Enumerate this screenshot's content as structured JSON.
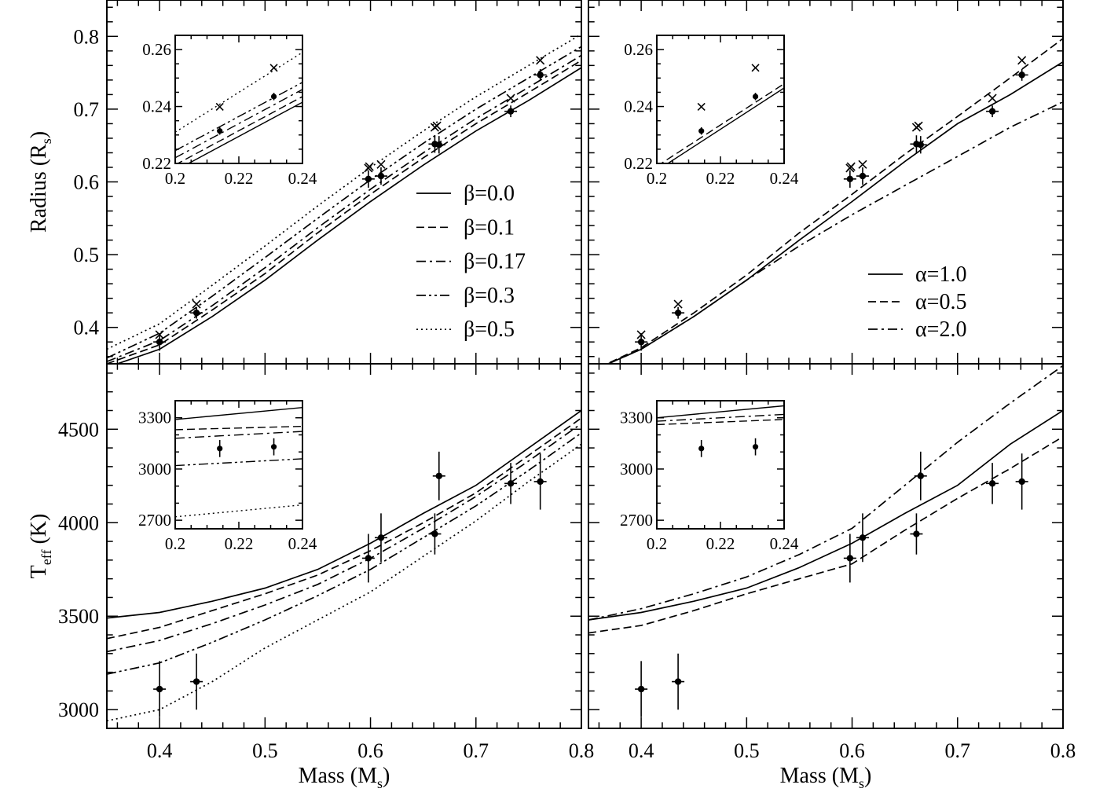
{
  "chart_data": [
    {
      "type": "line",
      "panel": "top-left",
      "ylabel": "Radius (R",
      "ylabel_sub": "s",
      "ylabel_tail": ")",
      "xlim": [
        0.35,
        0.8
      ],
      "ylim": [
        0.35,
        0.85
      ],
      "y_ticks": [
        "0.4",
        "0.5",
        "0.6",
        "0.7",
        "0.8"
      ],
      "legend_position": "lower-right",
      "series": [
        {
          "name": "β=0.0",
          "style": "solid",
          "x": [
            0.35,
            0.4,
            0.45,
            0.5,
            0.55,
            0.6,
            0.65,
            0.7,
            0.75,
            0.8
          ],
          "y": [
            0.345,
            0.37,
            0.415,
            0.465,
            0.52,
            0.573,
            0.623,
            0.67,
            0.712,
            0.757
          ]
        },
        {
          "name": "β=0.1",
          "style": "dashed",
          "x": [
            0.35,
            0.4,
            0.45,
            0.5,
            0.55,
            0.6,
            0.65,
            0.7,
            0.75,
            0.8
          ],
          "y": [
            0.35,
            0.376,
            0.424,
            0.474,
            0.53,
            0.583,
            0.633,
            0.68,
            0.723,
            0.767
          ]
        },
        {
          "name": "β=0.17",
          "style": "dashdot",
          "x": [
            0.35,
            0.4,
            0.45,
            0.5,
            0.55,
            0.6,
            0.65,
            0.7,
            0.75,
            0.8
          ],
          "y": [
            0.353,
            0.382,
            0.43,
            0.482,
            0.537,
            0.59,
            0.64,
            0.687,
            0.73,
            0.774
          ]
        },
        {
          "name": "β=0.3",
          "style": "dashdotdot",
          "x": [
            0.35,
            0.4,
            0.45,
            0.5,
            0.55,
            0.6,
            0.65,
            0.7,
            0.75,
            0.8
          ],
          "y": [
            0.358,
            0.392,
            0.443,
            0.496,
            0.55,
            0.603,
            0.653,
            0.7,
            0.743,
            0.786
          ]
        },
        {
          "name": "β=0.5",
          "style": "dotted",
          "x": [
            0.35,
            0.4,
            0.45,
            0.5,
            0.55,
            0.6,
            0.65,
            0.7,
            0.75,
            0.8
          ],
          "y": [
            0.37,
            0.405,
            0.458,
            0.512,
            0.567,
            0.62,
            0.67,
            0.717,
            0.76,
            0.803
          ]
        }
      ],
      "observed": {
        "x": [
          0.4,
          0.435,
          0.598,
          0.61,
          0.661,
          0.665,
          0.733,
          0.761
        ],
        "y": [
          0.38,
          0.42,
          0.604,
          0.608,
          0.652,
          0.651,
          0.697,
          0.747
        ],
        "yerr": [
          0.012,
          0.008,
          0.012,
          0.012,
          0.012,
          0.012,
          0.008,
          0.008
        ]
      },
      "crosses": {
        "x": [
          0.4,
          0.435,
          0.598,
          0.599,
          0.61,
          0.661,
          0.663,
          0.733,
          0.761
        ],
        "y": [
          0.39,
          0.432,
          0.619,
          0.621,
          0.624,
          0.675,
          0.677,
          0.715,
          0.767
        ]
      },
      "inset": {
        "xlim": [
          0.2,
          0.24
        ],
        "ylim": [
          0.22,
          0.265
        ],
        "x_ticks": [
          "0.2",
          "0.22",
          "0.24"
        ],
        "y_ticks": [
          "0.22",
          "0.24",
          "0.26"
        ],
        "series": [
          {
            "style": "solid",
            "x": [
              0.2,
              0.24
            ],
            "y": [
              0.2175,
              0.2415
            ]
          },
          {
            "style": "dashed",
            "x": [
              0.2,
              0.24
            ],
            "y": [
              0.2195,
              0.2435
            ]
          },
          {
            "style": "dashdot",
            "x": [
              0.2,
              0.24
            ],
            "y": [
              0.222,
              0.246
            ]
          },
          {
            "style": "dashdotdot",
            "x": [
              0.2,
              0.24
            ],
            "y": [
              0.2245,
              0.2485
            ]
          },
          {
            "style": "dotted",
            "x": [
              0.2,
              0.24
            ],
            "y": [
              0.231,
              0.259
            ]
          }
        ],
        "observed": {
          "x": [
            0.214,
            0.231
          ],
          "y": [
            0.2314,
            0.2435
          ],
          "yerr": [
            0.0013,
            0.0013
          ]
        },
        "crosses": {
          "x": [
            0.214,
            0.231
          ],
          "y": [
            0.2399,
            0.2536
          ]
        }
      }
    },
    {
      "type": "line",
      "panel": "top-right",
      "xlim": [
        0.35,
        0.8
      ],
      "ylim": [
        0.35,
        0.85
      ],
      "legend_position": "lower-right",
      "series": [
        {
          "name": "α=1.0",
          "style": "solid",
          "x": [
            0.35,
            0.4,
            0.45,
            0.5,
            0.55,
            0.6,
            0.65,
            0.7,
            0.75,
            0.8
          ],
          "y": [
            0.338,
            0.37,
            0.415,
            0.465,
            0.52,
            0.573,
            0.628,
            0.68,
            0.72,
            0.765
          ]
        },
        {
          "name": "α=0.5",
          "style": "dashed",
          "x": [
            0.35,
            0.4,
            0.45,
            0.5,
            0.55,
            0.6,
            0.65,
            0.7,
            0.75,
            0.8
          ],
          "y": [
            0.338,
            0.372,
            0.42,
            0.472,
            0.53,
            0.583,
            0.638,
            0.69,
            0.743,
            0.797
          ]
        },
        {
          "name": "α=2.0",
          "style": "dashdot",
          "x": [
            0.35,
            0.4,
            0.45,
            0.5,
            0.55,
            0.6,
            0.65,
            0.7,
            0.75,
            0.8
          ],
          "y": [
            0.338,
            0.37,
            0.415,
            0.465,
            0.512,
            0.555,
            0.595,
            0.635,
            0.675,
            0.71
          ]
        }
      ],
      "observed": {
        "x": [
          0.4,
          0.435,
          0.598,
          0.61,
          0.661,
          0.665,
          0.733,
          0.761
        ],
        "y": [
          0.38,
          0.42,
          0.604,
          0.608,
          0.652,
          0.651,
          0.697,
          0.747
        ],
        "yerr": [
          0.012,
          0.008,
          0.012,
          0.012,
          0.012,
          0.012,
          0.008,
          0.008
        ]
      },
      "crosses": {
        "x": [
          0.4,
          0.435,
          0.598,
          0.599,
          0.61,
          0.661,
          0.663,
          0.733,
          0.761
        ],
        "y": [
          0.39,
          0.432,
          0.619,
          0.621,
          0.624,
          0.675,
          0.677,
          0.715,
          0.767
        ]
      },
      "inset": {
        "xlim": [
          0.2,
          0.24
        ],
        "ylim": [
          0.22,
          0.265
        ],
        "x_ticks": [
          "0.2",
          "0.22",
          "0.24"
        ],
        "y_ticks": [
          "0.22",
          "0.24",
          "0.26"
        ],
        "series": [
          {
            "style": "solid",
            "x": [
              0.2,
              0.24
            ],
            "y": [
              0.2175,
              0.2465
            ]
          },
          {
            "style": "dashed",
            "x": [
              0.2,
              0.24
            ],
            "y": [
              0.219,
              0.248
            ]
          }
        ],
        "observed": {
          "x": [
            0.214,
            0.231
          ],
          "y": [
            0.2314,
            0.2435
          ],
          "yerr": [
            0.0013,
            0.0013
          ]
        },
        "crosses": {
          "x": [
            0.214,
            0.231
          ],
          "y": [
            0.2399,
            0.2536
          ]
        }
      }
    },
    {
      "type": "line",
      "panel": "bottom-left",
      "ylabel": "T",
      "ylabel_sub": "eff",
      "ylabel_tail": " (K)",
      "xlabel": "Mass (M",
      "xlabel_sub": "s",
      "xlabel_tail": ")",
      "xlim": [
        0.35,
        0.8
      ],
      "ylim": [
        2900,
        4850
      ],
      "x_ticks": [
        "0.4",
        "0.5",
        "0.6",
        "0.7",
        "0.8"
      ],
      "y_ticks": [
        "3000",
        "3500",
        "4000",
        "4500"
      ],
      "series": [
        {
          "style": "solid",
          "x": [
            0.35,
            0.4,
            0.45,
            0.5,
            0.55,
            0.6,
            0.65,
            0.7,
            0.75,
            0.8
          ],
          "y": [
            3490,
            3520,
            3580,
            3650,
            3750,
            3890,
            4050,
            4200,
            4400,
            4600
          ]
        },
        {
          "style": "dashed",
          "x": [
            0.35,
            0.4,
            0.45,
            0.5,
            0.55,
            0.6,
            0.65,
            0.7,
            0.75,
            0.8
          ],
          "y": [
            3380,
            3440,
            3530,
            3620,
            3720,
            3850,
            4000,
            4160,
            4360,
            4560
          ]
        },
        {
          "style": "dashdot",
          "x": [
            0.35,
            0.4,
            0.45,
            0.5,
            0.55,
            0.6,
            0.65,
            0.7,
            0.75,
            0.8
          ],
          "y": [
            3310,
            3370,
            3460,
            3560,
            3670,
            3810,
            3970,
            4140,
            4330,
            4530
          ]
        },
        {
          "style": "dashdotdot",
          "x": [
            0.35,
            0.4,
            0.45,
            0.5,
            0.55,
            0.6,
            0.65,
            0.7,
            0.75,
            0.8
          ],
          "y": [
            3190,
            3250,
            3360,
            3480,
            3610,
            3750,
            3920,
            4090,
            4280,
            4480
          ]
        },
        {
          "style": "dotted",
          "x": [
            0.35,
            0.4,
            0.45,
            0.5,
            0.55,
            0.6,
            0.65,
            0.7,
            0.75,
            0.8
          ],
          "y": [
            2940,
            3000,
            3150,
            3330,
            3480,
            3630,
            3820,
            4010,
            4220,
            4420
          ]
        }
      ],
      "observed": {
        "x": [
          0.4,
          0.435,
          0.598,
          0.61,
          0.661,
          0.665,
          0.733,
          0.761
        ],
        "y": [
          3110,
          3150,
          3810,
          3920,
          3940,
          4250,
          4210,
          4220
        ],
        "yerr": [
          150,
          150,
          130,
          130,
          110,
          130,
          110,
          150
        ]
      },
      "inset": {
        "xlim": [
          0.2,
          0.24
        ],
        "ylim": [
          2650,
          3400
        ],
        "x_ticks": [
          "0.2",
          "0.22",
          "0.24"
        ],
        "y_ticks": [
          "2700",
          "3000",
          "3300"
        ],
        "series": [
          {
            "style": "solid",
            "x": [
              0.2,
              0.24
            ],
            "y": [
              3290,
              3360
            ]
          },
          {
            "style": "dashed",
            "x": [
              0.2,
              0.24
            ],
            "y": [
              3230,
              3250
            ]
          },
          {
            "style": "dashdot",
            "x": [
              0.2,
              0.24
            ],
            "y": [
              3180,
              3220
            ]
          },
          {
            "style": "dashdotdot",
            "x": [
              0.2,
              0.24
            ],
            "y": [
              3020,
              3060
            ]
          },
          {
            "style": "dotted",
            "x": [
              0.2,
              0.24
            ],
            "y": [
              2720,
              2790
            ]
          }
        ],
        "observed": {
          "x": [
            0.214,
            0.231
          ],
          "y": [
            3120,
            3130
          ],
          "yerr": [
            50,
            50
          ]
        }
      }
    },
    {
      "type": "line",
      "panel": "bottom-right",
      "xlabel": "Mass (M",
      "xlabel_sub": "s",
      "xlabel_tail": ")",
      "xlim": [
        0.35,
        0.8
      ],
      "ylim": [
        2900,
        4850
      ],
      "x_ticks": [
        "0.4",
        "0.5",
        "0.6",
        "0.7",
        "0.8"
      ],
      "series": [
        {
          "style": "solid",
          "x": [
            0.35,
            0.4,
            0.45,
            0.5,
            0.55,
            0.6,
            0.65,
            0.7,
            0.75,
            0.8
          ],
          "y": [
            3480,
            3520,
            3580,
            3650,
            3760,
            3890,
            4050,
            4200,
            4420,
            4600
          ]
        },
        {
          "style": "dashed",
          "x": [
            0.35,
            0.4,
            0.45,
            0.5,
            0.55,
            0.6,
            0.65,
            0.7,
            0.75,
            0.8
          ],
          "y": [
            3410,
            3450,
            3530,
            3620,
            3700,
            3780,
            3960,
            4130,
            4290,
            4460
          ]
        },
        {
          "style": "dashdot",
          "x": [
            0.35,
            0.4,
            0.45,
            0.5,
            0.55,
            0.6,
            0.65,
            0.7,
            0.75,
            0.8
          ],
          "y": [
            3480,
            3540,
            3620,
            3710,
            3830,
            3970,
            4200,
            4430,
            4640,
            4840
          ]
        }
      ],
      "observed": {
        "x": [
          0.4,
          0.435,
          0.598,
          0.61,
          0.661,
          0.665,
          0.733,
          0.761
        ],
        "y": [
          3110,
          3150,
          3810,
          3920,
          3940,
          4250,
          4210,
          4220
        ],
        "yerr": [
          150,
          150,
          130,
          130,
          110,
          130,
          110,
          150
        ]
      },
      "inset": {
        "xlim": [
          0.2,
          0.24
        ],
        "ylim": [
          2650,
          3400
        ],
        "x_ticks": [
          "0.2",
          "0.22",
          "0.24"
        ],
        "y_ticks": [
          "2700",
          "3000",
          "3300"
        ],
        "series": [
          {
            "style": "solid",
            "x": [
              0.2,
              0.24
            ],
            "y": [
              3300,
              3370
            ]
          },
          {
            "style": "dashed",
            "x": [
              0.2,
              0.24
            ],
            "y": [
              3260,
              3290
            ]
          },
          {
            "style": "dashdot",
            "x": [
              0.2,
              0.24
            ],
            "y": [
              3280,
              3320
            ]
          }
        ],
        "observed": {
          "x": [
            0.214,
            0.231
          ],
          "y": [
            3120,
            3130
          ],
          "yerr": [
            50,
            50
          ]
        }
      }
    }
  ]
}
